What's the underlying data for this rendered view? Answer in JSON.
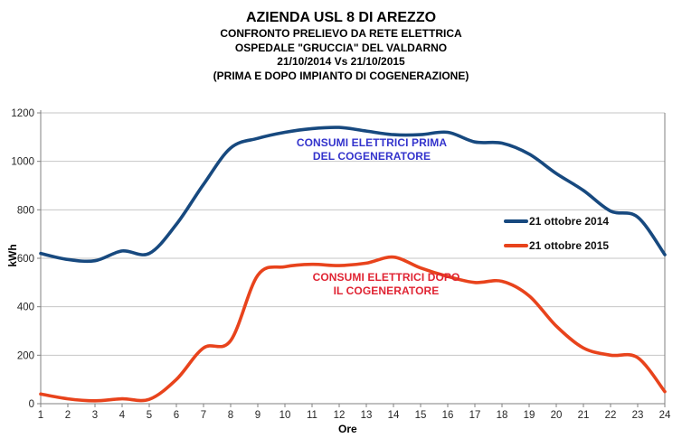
{
  "title": {
    "line1": "AZIENDA USL 8 DI AREZZO",
    "line2": "CONFRONTO PRELIEVO DA RETE ELETTRICA",
    "line3": "OSPEDALE \"GRUCCIA\" DEL VALDARNO",
    "line4": "21/10/2014 Vs 21/10/2015",
    "line5": "(PRIMA E DOPO IMPIANTO DI COGENERAZIONE)"
  },
  "chart_data": {
    "type": "line",
    "x": [
      1,
      2,
      3,
      4,
      5,
      6,
      7,
      8,
      9,
      10,
      11,
      12,
      13,
      14,
      15,
      16,
      17,
      18,
      19,
      20,
      21,
      22,
      23,
      24
    ],
    "series": [
      {
        "name": "21 ottobre 2014",
        "color": "#17497F",
        "values": [
          620,
          595,
          590,
          630,
          620,
          740,
          905,
          1055,
          1095,
          1120,
          1135,
          1140,
          1125,
          1110,
          1110,
          1120,
          1080,
          1075,
          1030,
          950,
          880,
          795,
          770,
          615
        ]
      },
      {
        "name": "21 ottobre 2015",
        "color": "#E8431C",
        "values": [
          40,
          20,
          12,
          20,
          18,
          100,
          230,
          260,
          530,
          565,
          575,
          570,
          580,
          605,
          560,
          525,
          500,
          505,
          445,
          320,
          230,
          200,
          190,
          50
        ]
      }
    ],
    "xlabel": "Ore",
    "ylabel": "kWh",
    "ylim": [
      0,
      1200
    ],
    "ytick_step": 200,
    "grid": "horizontal",
    "smooth_lines": true,
    "legend_position": "middle-right",
    "annotations": [
      {
        "text_line1": "CONSUMI ELETTRICI PRIMA",
        "text_line2": "DEL COGENERATORE",
        "color": "#3333CC"
      },
      {
        "text_line1": "CONSUMI ELETTRICI DOPO",
        "text_line2": "IL COGENERATORE",
        "color": "#E02433"
      }
    ]
  },
  "colors": {
    "background": "#FFFFFF",
    "gridline": "#C6C6C6",
    "axis": "#808080",
    "tick_label": "#262626"
  }
}
